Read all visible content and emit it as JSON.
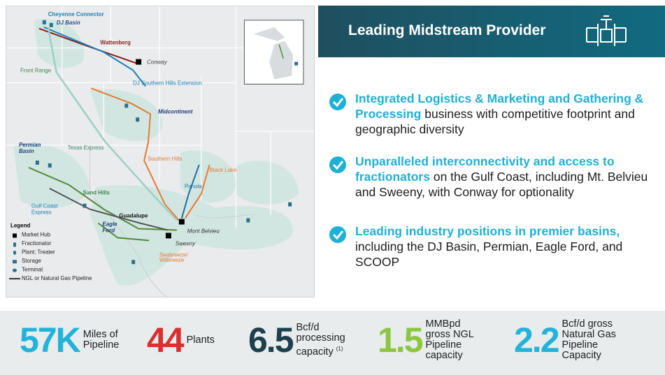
{
  "map": {
    "labels": {
      "cheyenne": "Cheyenne Connector",
      "dj_basin": "DJ Basin",
      "wattenberg": "Wattenberg",
      "conway": "Conway",
      "front_range": "Front Range",
      "dj_southern_hills": "DJ Southern Hills Extension",
      "midcontinent": "Midcontinent",
      "permian": [
        "Permian",
        "Basin"
      ],
      "texas_express": "Texas Express",
      "southern_hills": "Southern Hills",
      "black_lake": "Black Lake",
      "panola": "Panola",
      "sand_hills": "Sand Hills",
      "gulf_coast_express": [
        "Gulf Coast",
        "Express"
      ],
      "guadalupe": "Guadalupe",
      "eagle_ford": [
        "Eagle",
        "Ford"
      ],
      "mont_belvieu": "Mont Belvieu",
      "sweeny": "Sweeny",
      "seabreeze": [
        "Seabreeze/",
        "Wilbreeze"
      ]
    },
    "legend": {
      "title": "Legend",
      "items": [
        "Market Hub",
        "Fractionator",
        "Plant; Treater",
        "Storage",
        "Terminal",
        "NGL or Natural Gas Pipeline"
      ]
    }
  },
  "header": {
    "title": "Leading Midstream Provider"
  },
  "bullets": [
    {
      "highlight": "Integrated Logistics & Marketing and Gathering & Processing",
      "text": "business with competitive footprint and geographic diversity"
    },
    {
      "highlight": "Unparalleled interconnectivity and access to fractionators",
      "text": "on the Gulf Coast, including Mt. Belvieu and Sweeny, with Conway for optionality"
    },
    {
      "highlight": "Leading industry positions in premier basins,",
      "text": "including the DJ Basin, Permian, Eagle Ford, and SCOOP"
    }
  ],
  "stats": [
    {
      "value": "57K",
      "label": [
        "Miles of",
        "Pipeline"
      ]
    },
    {
      "value": "44",
      "label": [
        "Plants"
      ]
    },
    {
      "value": "6.5",
      "label": [
        "Bcf/d",
        "processing",
        "capacity"
      ],
      "note": "(1)"
    },
    {
      "value": "1.5",
      "label": [
        "MMBpd",
        "gross NGL",
        "Pipeline",
        "capacity"
      ]
    },
    {
      "value": "2.2",
      "label": [
        "Bcf/d gross",
        "Natural Gas",
        "Pipeline",
        "Capacity"
      ]
    }
  ]
}
